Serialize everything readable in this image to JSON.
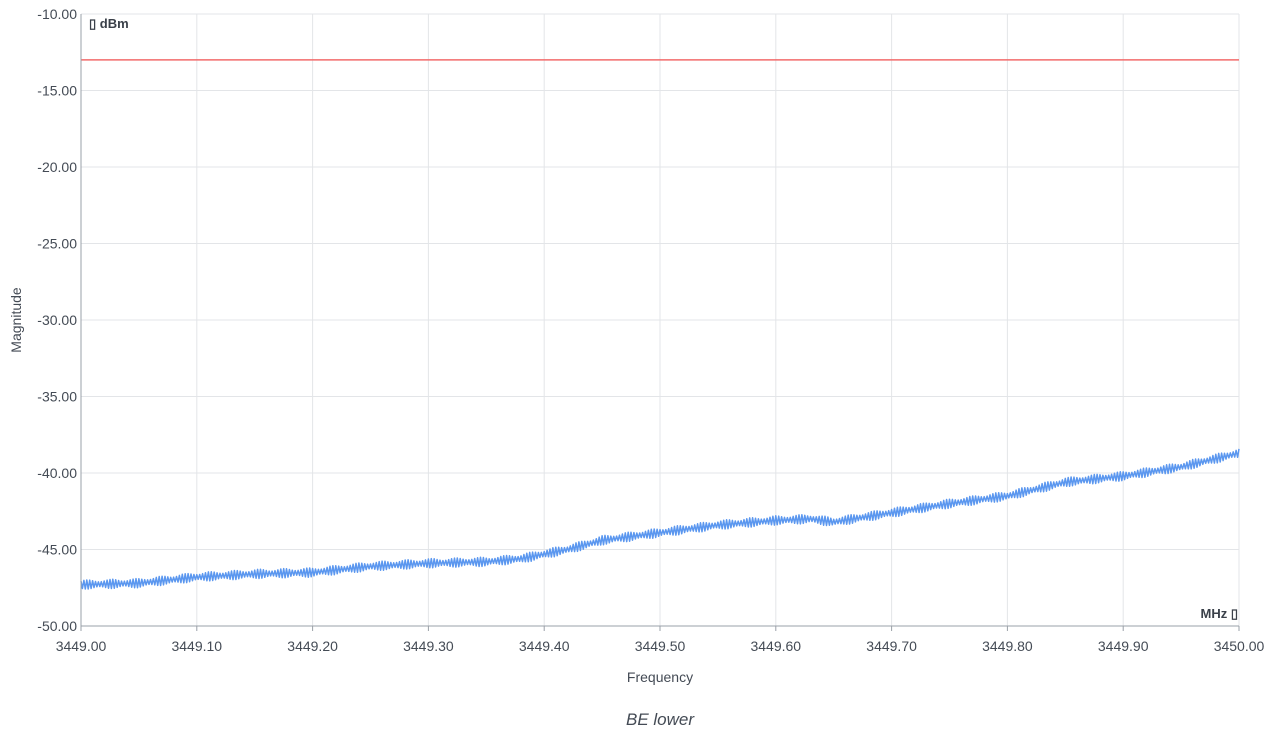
{
  "chart_data": {
    "type": "line",
    "title": "",
    "caption": "BE lower",
    "xlabel": "Frequency",
    "ylabel": "Magnitude",
    "y_unit": "▯ dBm",
    "x_unit": "MHz ▯",
    "xlim": [
      3449.0,
      3450.0
    ],
    "ylim": [
      -50.0,
      -10.0
    ],
    "x_ticks": [
      "3449.00",
      "3449.10",
      "3449.20",
      "3449.30",
      "3449.40",
      "3449.50",
      "3449.60",
      "3449.70",
      "3449.80",
      "3449.90",
      "3450.00"
    ],
    "y_ticks": [
      "-10.00",
      "-15.00",
      "-20.00",
      "-25.00",
      "-30.00",
      "-35.00",
      "-40.00",
      "-45.00",
      "-50.00"
    ],
    "grid": true,
    "threshold": {
      "value": -13.0,
      "color": "#f26b6b"
    },
    "series": [
      {
        "color": "#5b97ef",
        "ripple": 0.3,
        "x": [
          3449.0,
          3449.05,
          3449.1,
          3449.15,
          3449.2,
          3449.25,
          3449.3,
          3449.35,
          3449.38,
          3449.4,
          3449.42,
          3449.45,
          3449.5,
          3449.55,
          3449.6,
          3449.63,
          3449.65,
          3449.7,
          3449.75,
          3449.8,
          3449.85,
          3449.9,
          3449.95,
          3450.0
        ],
        "y": [
          -47.3,
          -47.2,
          -46.8,
          -46.6,
          -46.5,
          -46.1,
          -45.9,
          -45.8,
          -45.6,
          -45.3,
          -45.0,
          -44.4,
          -43.9,
          -43.4,
          -43.1,
          -43.0,
          -43.2,
          -42.6,
          -42.0,
          -41.5,
          -40.6,
          -40.2,
          -39.6,
          -38.7
        ]
      }
    ]
  }
}
